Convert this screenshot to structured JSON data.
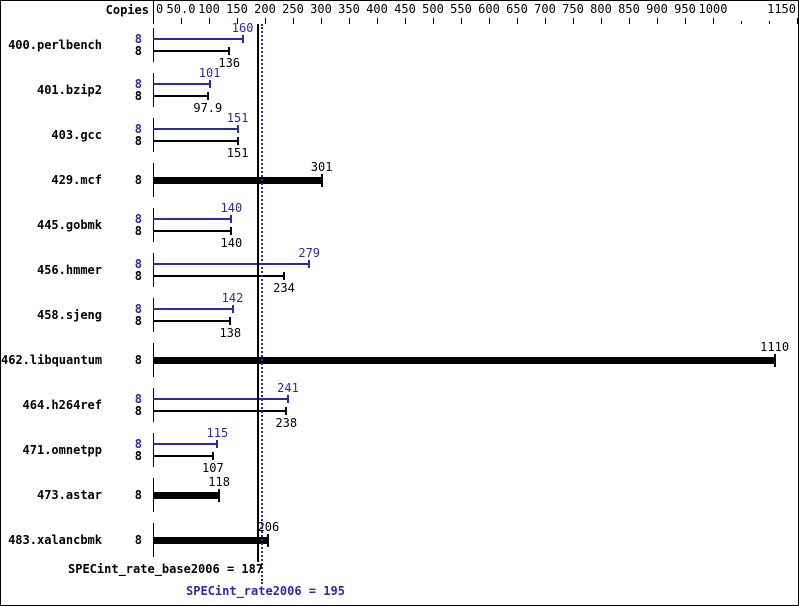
{
  "colors": {
    "peak_blue": "#2b2baa",
    "base_black": "#000000",
    "background": "#ffffff"
  },
  "chart_data": {
    "type": "bar",
    "orientation": "horizontal",
    "copies_header": "Copies",
    "axis": {
      "min": 0,
      "max": 1150,
      "position": "top",
      "ticks": [
        {
          "value": 0,
          "label": "0"
        },
        {
          "value": 50,
          "label": "50.0"
        },
        {
          "value": 100,
          "label": "100"
        },
        {
          "value": 150,
          "label": "150"
        },
        {
          "value": 200,
          "label": "200"
        },
        {
          "value": 250,
          "label": "250"
        },
        {
          "value": 300,
          "label": "300"
        },
        {
          "value": 350,
          "label": "350"
        },
        {
          "value": 400,
          "label": "400"
        },
        {
          "value": 450,
          "label": "450"
        },
        {
          "value": 500,
          "label": "500"
        },
        {
          "value": 550,
          "label": "550"
        },
        {
          "value": 600,
          "label": "600"
        },
        {
          "value": 650,
          "label": "650"
        },
        {
          "value": 700,
          "label": "700"
        },
        {
          "value": 750,
          "label": "750"
        },
        {
          "value": 800,
          "label": "800"
        },
        {
          "value": 850,
          "label": "850"
        },
        {
          "value": 900,
          "label": "900"
        },
        {
          "value": 950,
          "label": "950"
        },
        {
          "value": 1000,
          "label": "1000"
        },
        {
          "value": 1050,
          "label": "",
          "minor": true
        },
        {
          "value": 1100,
          "label": "",
          "minor": true
        },
        {
          "value": 1150,
          "label": "1150"
        }
      ]
    },
    "series_legend": {
      "peak": "blue thin bar (top)",
      "base": "black thin bar (bottom)",
      "single": "black thick bar"
    },
    "benchmarks": [
      {
        "name": "400.perlbench",
        "copies": 8,
        "peak": 160,
        "base": 136,
        "peak_label": "160",
        "base_label": "136"
      },
      {
        "name": "401.bzip2",
        "copies": 8,
        "peak": 101,
        "base": 97.9,
        "peak_label": "101",
        "base_label": "97.9"
      },
      {
        "name": "403.gcc",
        "copies": 8,
        "peak": 151,
        "base": 151,
        "peak_label": "151",
        "base_label": "151"
      },
      {
        "name": "429.mcf",
        "copies": 8,
        "value": 301,
        "value_label": "301"
      },
      {
        "name": "445.gobmk",
        "copies": 8,
        "peak": 140,
        "base": 140,
        "peak_label": "140",
        "base_label": "140"
      },
      {
        "name": "456.hmmer",
        "copies": 8,
        "peak": 279,
        "base": 234,
        "peak_label": "279",
        "base_label": "234"
      },
      {
        "name": "458.sjeng",
        "copies": 8,
        "peak": 142,
        "base": 138,
        "peak_label": "142",
        "base_label": "138"
      },
      {
        "name": "462.libquantum",
        "copies": 8,
        "value": 1110,
        "value_label": "1110"
      },
      {
        "name": "464.h264ref",
        "copies": 8,
        "peak": 241,
        "base": 238,
        "peak_label": "241",
        "base_label": "238"
      },
      {
        "name": "471.omnetpp",
        "copies": 8,
        "peak": 115,
        "base": 107,
        "peak_label": "115",
        "base_label": "107"
      },
      {
        "name": "473.astar",
        "copies": 8,
        "value": 118,
        "value_label": "118"
      },
      {
        "name": "483.xalancbmk",
        "copies": 8,
        "value": 206,
        "value_label": "206"
      }
    ],
    "reference_lines": [
      {
        "name": "base",
        "value": 187,
        "style": "solid",
        "color": "#000000",
        "label": "SPECint_rate_base2006 = 187"
      },
      {
        "name": "peak",
        "value": 195,
        "style": "dotted",
        "color": "#2b2baa",
        "label": "SPECint_rate2006 = 195"
      }
    ]
  }
}
